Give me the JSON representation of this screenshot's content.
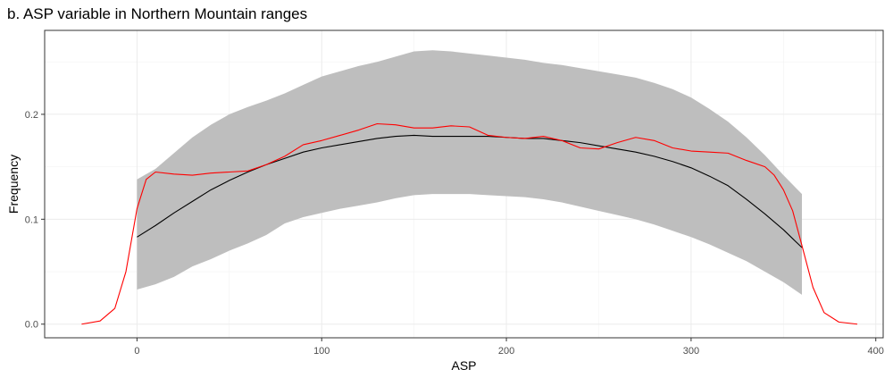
{
  "chart_data": {
    "type": "area",
    "title": "b. ASP variable in Northern Mountain ranges",
    "xlabel": "ASP",
    "ylabel": "Frequency",
    "xlim": [
      -50,
      404
    ],
    "ylim": [
      -0.013,
      0.28
    ],
    "xticks": [
      0,
      100,
      200,
      300,
      400
    ],
    "xtick_labels": [
      "0",
      "100",
      "200",
      "300",
      "400"
    ],
    "yticks": [
      0.0,
      0.1,
      0.2
    ],
    "ytick_labels": [
      "0.0",
      "0.1",
      "0.2"
    ],
    "grid": true,
    "legend": "none",
    "series": [
      {
        "kind": "ribbon",
        "color": "#bebebe",
        "x": [
          0,
          10,
          20,
          30,
          40,
          50,
          60,
          70,
          80,
          90,
          100,
          110,
          120,
          130,
          140,
          150,
          160,
          170,
          180,
          190,
          200,
          210,
          220,
          230,
          240,
          250,
          260,
          270,
          280,
          290,
          300,
          310,
          320,
          330,
          340,
          350,
          360
        ],
        "lower": [
          0.033,
          0.038,
          0.045,
          0.055,
          0.062,
          0.07,
          0.077,
          0.085,
          0.096,
          0.102,
          0.106,
          0.11,
          0.113,
          0.116,
          0.12,
          0.123,
          0.124,
          0.124,
          0.124,
          0.123,
          0.122,
          0.121,
          0.119,
          0.116,
          0.112,
          0.108,
          0.104,
          0.1,
          0.095,
          0.089,
          0.083,
          0.076,
          0.068,
          0.06,
          0.05,
          0.04,
          0.028
        ],
        "upper": [
          0.138,
          0.148,
          0.163,
          0.178,
          0.19,
          0.2,
          0.207,
          0.213,
          0.22,
          0.228,
          0.236,
          0.241,
          0.246,
          0.25,
          0.255,
          0.26,
          0.261,
          0.26,
          0.258,
          0.256,
          0.254,
          0.252,
          0.249,
          0.247,
          0.244,
          0.241,
          0.238,
          0.235,
          0.23,
          0.224,
          0.216,
          0.205,
          0.193,
          0.178,
          0.161,
          0.142,
          0.124
        ]
      },
      {
        "kind": "line",
        "color": "#000000",
        "x": [
          0,
          10,
          20,
          30,
          40,
          50,
          60,
          70,
          80,
          90,
          100,
          110,
          120,
          130,
          140,
          150,
          160,
          170,
          180,
          190,
          200,
          210,
          220,
          230,
          240,
          250,
          260,
          270,
          280,
          290,
          300,
          310,
          320,
          330,
          340,
          350,
          360
        ],
        "y": [
          0.083,
          0.094,
          0.106,
          0.117,
          0.128,
          0.137,
          0.145,
          0.152,
          0.158,
          0.164,
          0.168,
          0.171,
          0.174,
          0.177,
          0.179,
          0.18,
          0.179,
          0.179,
          0.179,
          0.179,
          0.178,
          0.177,
          0.177,
          0.175,
          0.173,
          0.17,
          0.167,
          0.164,
          0.16,
          0.155,
          0.149,
          0.141,
          0.132,
          0.119,
          0.105,
          0.09,
          0.073
        ]
      },
      {
        "kind": "line",
        "color": "#ff0000",
        "x": [
          -30,
          -20,
          -12,
          -6,
          0,
          5,
          10,
          20,
          30,
          40,
          50,
          60,
          70,
          80,
          90,
          100,
          110,
          120,
          130,
          140,
          150,
          160,
          170,
          180,
          190,
          200,
          210,
          220,
          230,
          240,
          250,
          260,
          270,
          280,
          290,
          300,
          310,
          320,
          330,
          340,
          345,
          350,
          355,
          360,
          366,
          372,
          380,
          390
        ],
        "y": [
          0.0,
          0.003,
          0.015,
          0.05,
          0.11,
          0.138,
          0.145,
          0.143,
          0.142,
          0.144,
          0.145,
          0.146,
          0.152,
          0.16,
          0.171,
          0.175,
          0.18,
          0.185,
          0.191,
          0.19,
          0.187,
          0.187,
          0.189,
          0.188,
          0.18,
          0.178,
          0.177,
          0.179,
          0.175,
          0.168,
          0.167,
          0.173,
          0.178,
          0.175,
          0.168,
          0.165,
          0.164,
          0.163,
          0.156,
          0.15,
          0.142,
          0.128,
          0.108,
          0.075,
          0.035,
          0.011,
          0.002,
          0.0
        ]
      }
    ]
  }
}
